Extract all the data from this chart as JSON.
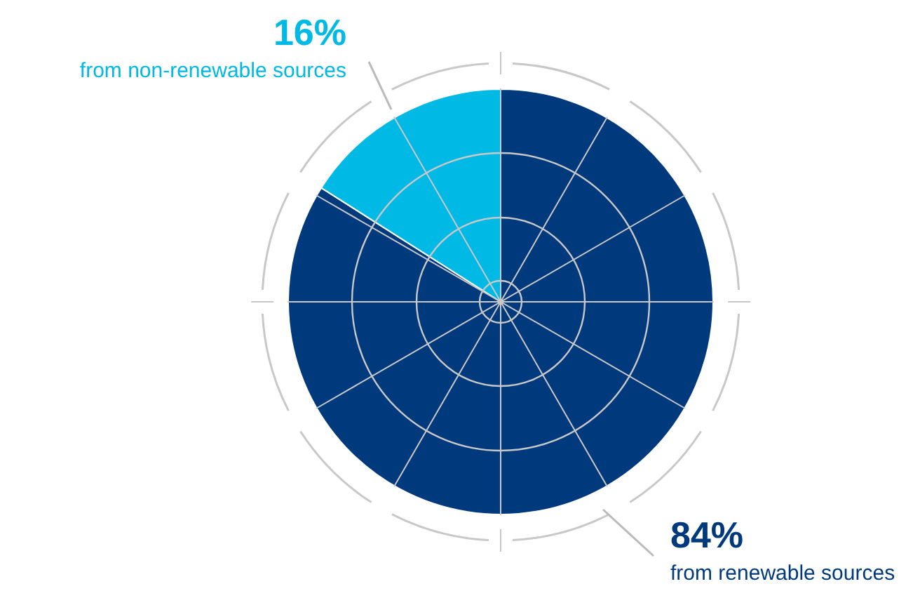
{
  "chart_data": {
    "type": "pie",
    "categories": [
      "from renewable sources",
      "from non-renewable sources"
    ],
    "values": [
      84,
      16
    ],
    "colors": [
      "#003a7d",
      "#00b9e4"
    ],
    "value_labels": [
      "84%",
      "16%"
    ],
    "legend": false
  }
}
